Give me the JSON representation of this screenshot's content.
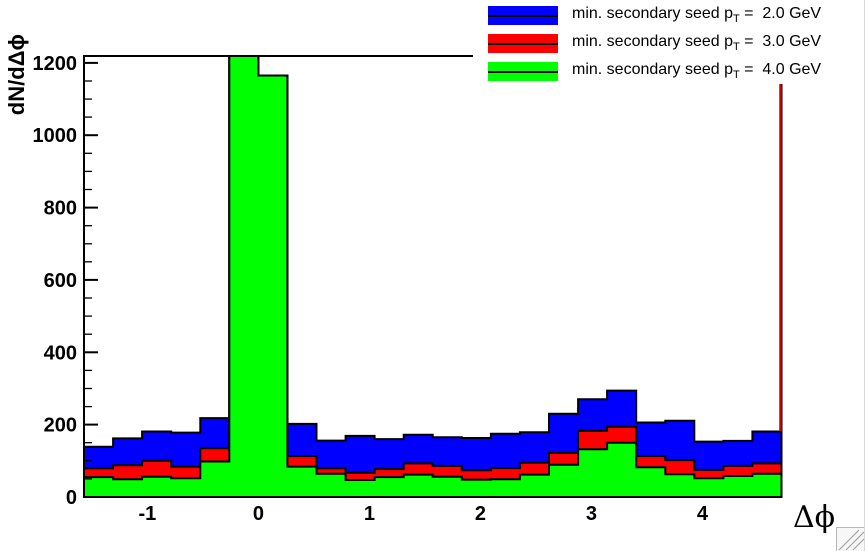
{
  "chart_data": {
    "type": "bar",
    "subtype": "overlaid-step-histograms",
    "title": "",
    "xlabel": "Δϕ",
    "ylabel": "dN/dΔϕ",
    "xlim": [
      -1.5708,
      4.7124
    ],
    "ylim": [
      0,
      1219
    ],
    "grid": false,
    "legend_position": "top-right",
    "bin_start": -1.5708,
    "bin_width": 0.2618,
    "n_bins": 24,
    "x_ticks": [
      -1,
      0,
      1,
      2,
      3,
      4
    ],
    "x_tick_labels": [
      "-1",
      "0",
      "1",
      "2",
      "3",
      "4"
    ],
    "y_ticks": [
      0,
      200,
      400,
      600,
      800,
      1000,
      1200
    ],
    "y_tick_labels": [
      "0",
      "200",
      "400",
      "600",
      "800",
      "1000",
      "1200"
    ],
    "y_minor_tick_step": 50,
    "series": [
      {
        "name": "min. secondary seed pT = 2.0 GeV",
        "color": "#0000ff",
        "values": [
          139,
          162,
          181,
          178,
          218,
          1250,
          1165,
          202,
          156,
          169,
          160,
          172,
          165,
          163,
          175,
          179,
          230,
          270,
          294,
          206,
          211,
          153,
          155,
          181
        ]
      },
      {
        "name": "min. secondary seed pT = 3.0 GeV",
        "color": "#ff0000",
        "values": [
          79,
          88,
          100,
          84,
          135,
          1250,
          1165,
          113,
          79,
          67,
          77,
          93,
          86,
          74,
          80,
          95,
          122,
          183,
          194,
          113,
          102,
          75,
          86,
          93
        ]
      },
      {
        "name": "min. secondary seed pT = 4.0 GeV",
        "color": "#00ff00",
        "values": [
          55,
          49,
          56,
          52,
          98,
          1250,
          1165,
          84,
          64,
          47,
          55,
          62,
          56,
          48,
          49,
          62,
          89,
          132,
          150,
          82,
          63,
          52,
          58,
          64
        ]
      }
    ],
    "peak_note": "bin at Δϕ=-0.26..0 is clipped at frame top; bin 0..0.26 ≈ 1165",
    "edge_line": {
      "color": "#cc0000",
      "x": 4.7124,
      "visible_y_range": [
        85,
        431
      ]
    }
  },
  "legend": {
    "entries": [
      {
        "prefix": "min. secondary seed p",
        "sub": "T",
        "suffix": " =  2.0 GeV",
        "color": "#0000ff"
      },
      {
        "prefix": "min. secondary seed p",
        "sub": "T",
        "suffix": " =  3.0 GeV",
        "color": "#ff0000"
      },
      {
        "prefix": "min. secondary seed p",
        "sub": "T",
        "suffix": " =  4.0 GeV",
        "color": "#00ff00"
      }
    ]
  },
  "frame": {
    "stroke": "#000000"
  },
  "colors": {
    "background": "#ffffff",
    "axis": "#000000"
  }
}
